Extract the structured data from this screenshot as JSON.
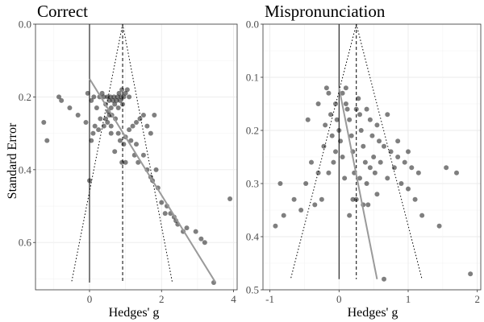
{
  "figure": {
    "ylabel": "Standard Error"
  },
  "chart_data": [
    {
      "type": "scatter",
      "title": "Correct",
      "xlabel": "Hedges' g",
      "ylabel": "Standard Error",
      "xlim": [
        -1.5,
        4.1
      ],
      "ylim": [
        0.0,
        0.73
      ],
      "y_reversed": true,
      "x_ticks": [
        0,
        2,
        4
      ],
      "y_ticks": [
        0.0,
        0.2,
        0.4,
        0.6
      ],
      "y_tick_labels": [
        "0.0",
        "0.2",
        "0.4",
        "0.6"
      ],
      "grid": true,
      "points": [
        [
          -1.27,
          0.27
        ],
        [
          -1.18,
          0.32
        ],
        [
          -0.85,
          0.2
        ],
        [
          -0.78,
          0.21
        ],
        [
          -0.55,
          0.23
        ],
        [
          -0.32,
          0.25
        ],
        [
          -0.05,
          0.19
        ],
        [
          0.05,
          0.21
        ],
        [
          0.12,
          0.2
        ],
        [
          0.2,
          0.23
        ],
        [
          0.28,
          0.2
        ],
        [
          0.35,
          0.19
        ],
        [
          0.4,
          0.2
        ],
        [
          0.45,
          0.22
        ],
        [
          0.5,
          0.2
        ],
        [
          0.52,
          0.24
        ],
        [
          0.55,
          0.21
        ],
        [
          0.58,
          0.2
        ],
        [
          0.6,
          0.23
        ],
        [
          0.62,
          0.25
        ],
        [
          0.65,
          0.21
        ],
        [
          0.68,
          0.2
        ],
        [
          0.7,
          0.22
        ],
        [
          0.72,
          0.26
        ],
        [
          0.75,
          0.21
        ],
        [
          0.78,
          0.2
        ],
        [
          0.8,
          0.23
        ],
        [
          0.82,
          0.19
        ],
        [
          0.85,
          0.21
        ],
        [
          0.88,
          0.2
        ],
        [
          0.9,
          0.18
        ],
        [
          0.92,
          0.22
        ],
        [
          0.95,
          0.2
        ],
        [
          1.0,
          0.19
        ],
        [
          1.05,
          0.18
        ],
        [
          1.1,
          0.2
        ],
        [
          0.45,
          0.26
        ],
        [
          0.5,
          0.27
        ],
        [
          0.55,
          0.25
        ],
        [
          0.6,
          0.28
        ],
        [
          0.4,
          0.28
        ],
        [
          0.3,
          0.26
        ],
        [
          0.25,
          0.29
        ],
        [
          0.15,
          0.28
        ],
        [
          0.1,
          0.3
        ],
        [
          -0.1,
          0.27
        ],
        [
          0.05,
          0.32
        ],
        [
          0.8,
          0.3
        ],
        [
          0.85,
          0.32
        ],
        [
          0.95,
          0.33
        ],
        [
          1.0,
          0.31
        ],
        [
          1.1,
          0.29
        ],
        [
          1.2,
          0.28
        ],
        [
          1.3,
          0.27
        ],
        [
          1.4,
          0.26
        ],
        [
          1.5,
          0.25
        ],
        [
          1.6,
          0.28
        ],
        [
          1.7,
          0.3
        ],
        [
          1.8,
          0.25
        ],
        [
          1.25,
          0.36
        ],
        [
          1.35,
          0.38
        ],
        [
          1.5,
          0.36
        ],
        [
          1.6,
          0.4
        ],
        [
          1.7,
          0.42
        ],
        [
          1.85,
          0.4
        ],
        [
          1.0,
          0.38
        ],
        [
          0.9,
          0.38
        ],
        [
          0.7,
          0.35
        ],
        [
          1.15,
          0.32
        ],
        [
          1.3,
          0.33
        ],
        [
          0.6,
          0.3
        ],
        [
          0.0,
          0.43
        ],
        [
          2.0,
          0.49
        ],
        [
          2.1,
          0.52
        ],
        [
          2.25,
          0.52
        ],
        [
          2.35,
          0.53
        ],
        [
          2.45,
          0.55
        ],
        [
          2.6,
          0.57
        ],
        [
          2.7,
          0.56
        ],
        [
          2.95,
          0.57
        ],
        [
          3.1,
          0.59
        ],
        [
          3.2,
          0.6
        ],
        [
          3.45,
          0.71
        ],
        [
          3.9,
          0.48
        ],
        [
          1.9,
          0.45
        ],
        [
          1.75,
          0.43
        ],
        [
          2.15,
          0.5
        ],
        [
          2.4,
          0.54
        ]
      ],
      "mean_line_x": 0.92,
      "zero_line_x": 0,
      "funnel": {
        "apex": [
          0.92,
          0.0
        ],
        "bottom_y": 0.71,
        "bottom_x": [
          -0.5,
          2.3
        ]
      },
      "regression": {
        "from": [
          0.0,
          0.15
        ],
        "to": [
          3.5,
          0.71
        ]
      }
    },
    {
      "type": "scatter",
      "title": "Mispronunciation",
      "xlabel": "Hedges' g",
      "ylabel": "",
      "xlim": [
        -1.1,
        2.05
      ],
      "ylim": [
        0.0,
        0.5
      ],
      "y_reversed": true,
      "x_ticks": [
        -1,
        0,
        1,
        2
      ],
      "y_ticks": [
        0.0,
        0.1,
        0.2,
        0.3,
        0.4,
        0.5
      ],
      "y_tick_labels": [
        "0.0",
        "0.1",
        "0.2",
        "0.3",
        "0.4",
        "0.5"
      ],
      "grid": true,
      "points": [
        [
          -0.92,
          0.38
        ],
        [
          -0.8,
          0.36
        ],
        [
          -0.85,
          0.3
        ],
        [
          -0.65,
          0.33
        ],
        [
          -0.55,
          0.35
        ],
        [
          -0.48,
          0.3
        ],
        [
          -0.45,
          0.18
        ],
        [
          -0.4,
          0.26
        ],
        [
          -0.35,
          0.34
        ],
        [
          -0.3,
          0.28
        ],
        [
          -0.25,
          0.33
        ],
        [
          -0.22,
          0.23
        ],
        [
          -0.2,
          0.19
        ],
        [
          -0.18,
          0.12
        ],
        [
          -0.15,
          0.13
        ],
        [
          -0.12,
          0.17
        ],
        [
          -0.1,
          0.21
        ],
        [
          -0.08,
          0.26
        ],
        [
          -0.05,
          0.15
        ],
        [
          -0.03,
          0.18
        ],
        [
          0.0,
          0.2
        ],
        [
          0.02,
          0.22
        ],
        [
          0.05,
          0.25
        ],
        [
          0.08,
          0.29
        ],
        [
          0.1,
          0.12
        ],
        [
          0.12,
          0.16
        ],
        [
          0.15,
          0.18
        ],
        [
          0.18,
          0.21
        ],
        [
          0.2,
          0.24
        ],
        [
          0.22,
          0.28
        ],
        [
          0.25,
          0.33
        ],
        [
          0.28,
          0.14
        ],
        [
          0.3,
          0.17
        ],
        [
          0.32,
          0.2
        ],
        [
          0.35,
          0.23
        ],
        [
          0.38,
          0.26
        ],
        [
          0.4,
          0.3
        ],
        [
          0.42,
          0.34
        ],
        [
          0.45,
          0.18
        ],
        [
          0.48,
          0.21
        ],
        [
          0.5,
          0.25
        ],
        [
          0.52,
          0.28
        ],
        [
          0.55,
          0.32
        ],
        [
          0.58,
          0.22
        ],
        [
          0.6,
          0.26
        ],
        [
          0.65,
          0.23
        ],
        [
          0.7,
          0.29
        ],
        [
          0.75,
          0.24
        ],
        [
          0.8,
          0.27
        ],
        [
          0.85,
          0.22
        ],
        [
          0.9,
          0.3
        ],
        [
          0.95,
          0.26
        ],
        [
          1.0,
          0.31
        ],
        [
          1.05,
          0.27
        ],
        [
          1.1,
          0.33
        ],
        [
          1.15,
          0.28
        ],
        [
          1.2,
          0.36
        ],
        [
          1.45,
          0.38
        ],
        [
          1.55,
          0.27
        ],
        [
          1.7,
          0.28
        ],
        [
          1.9,
          0.47
        ],
        [
          0.65,
          0.48
        ],
        [
          0.35,
          0.34
        ],
        [
          0.3,
          0.29
        ],
        [
          0.2,
          0.33
        ],
        [
          0.15,
          0.36
        ],
        [
          0.1,
          0.15
        ],
        [
          0.05,
          0.13
        ],
        [
          -0.05,
          0.24
        ],
        [
          -0.15,
          0.28
        ],
        [
          0.4,
          0.16
        ],
        [
          0.55,
          0.19
        ],
        [
          0.7,
          0.17
        ],
        [
          0.85,
          0.25
        ],
        [
          1.0,
          0.24
        ],
        [
          -0.3,
          0.15
        ],
        [
          0.25,
          0.16
        ],
        [
          0.45,
          0.27
        ]
      ],
      "mean_line_x": 0.25,
      "zero_line_x": 0,
      "funnel": {
        "apex": [
          0.25,
          0.0
        ],
        "bottom_y": 0.48,
        "bottom_x": [
          -0.7,
          1.2
        ]
      },
      "regression": {
        "from": [
          0.0,
          0.12
        ],
        "to": [
          0.55,
          0.48
        ]
      }
    }
  ]
}
